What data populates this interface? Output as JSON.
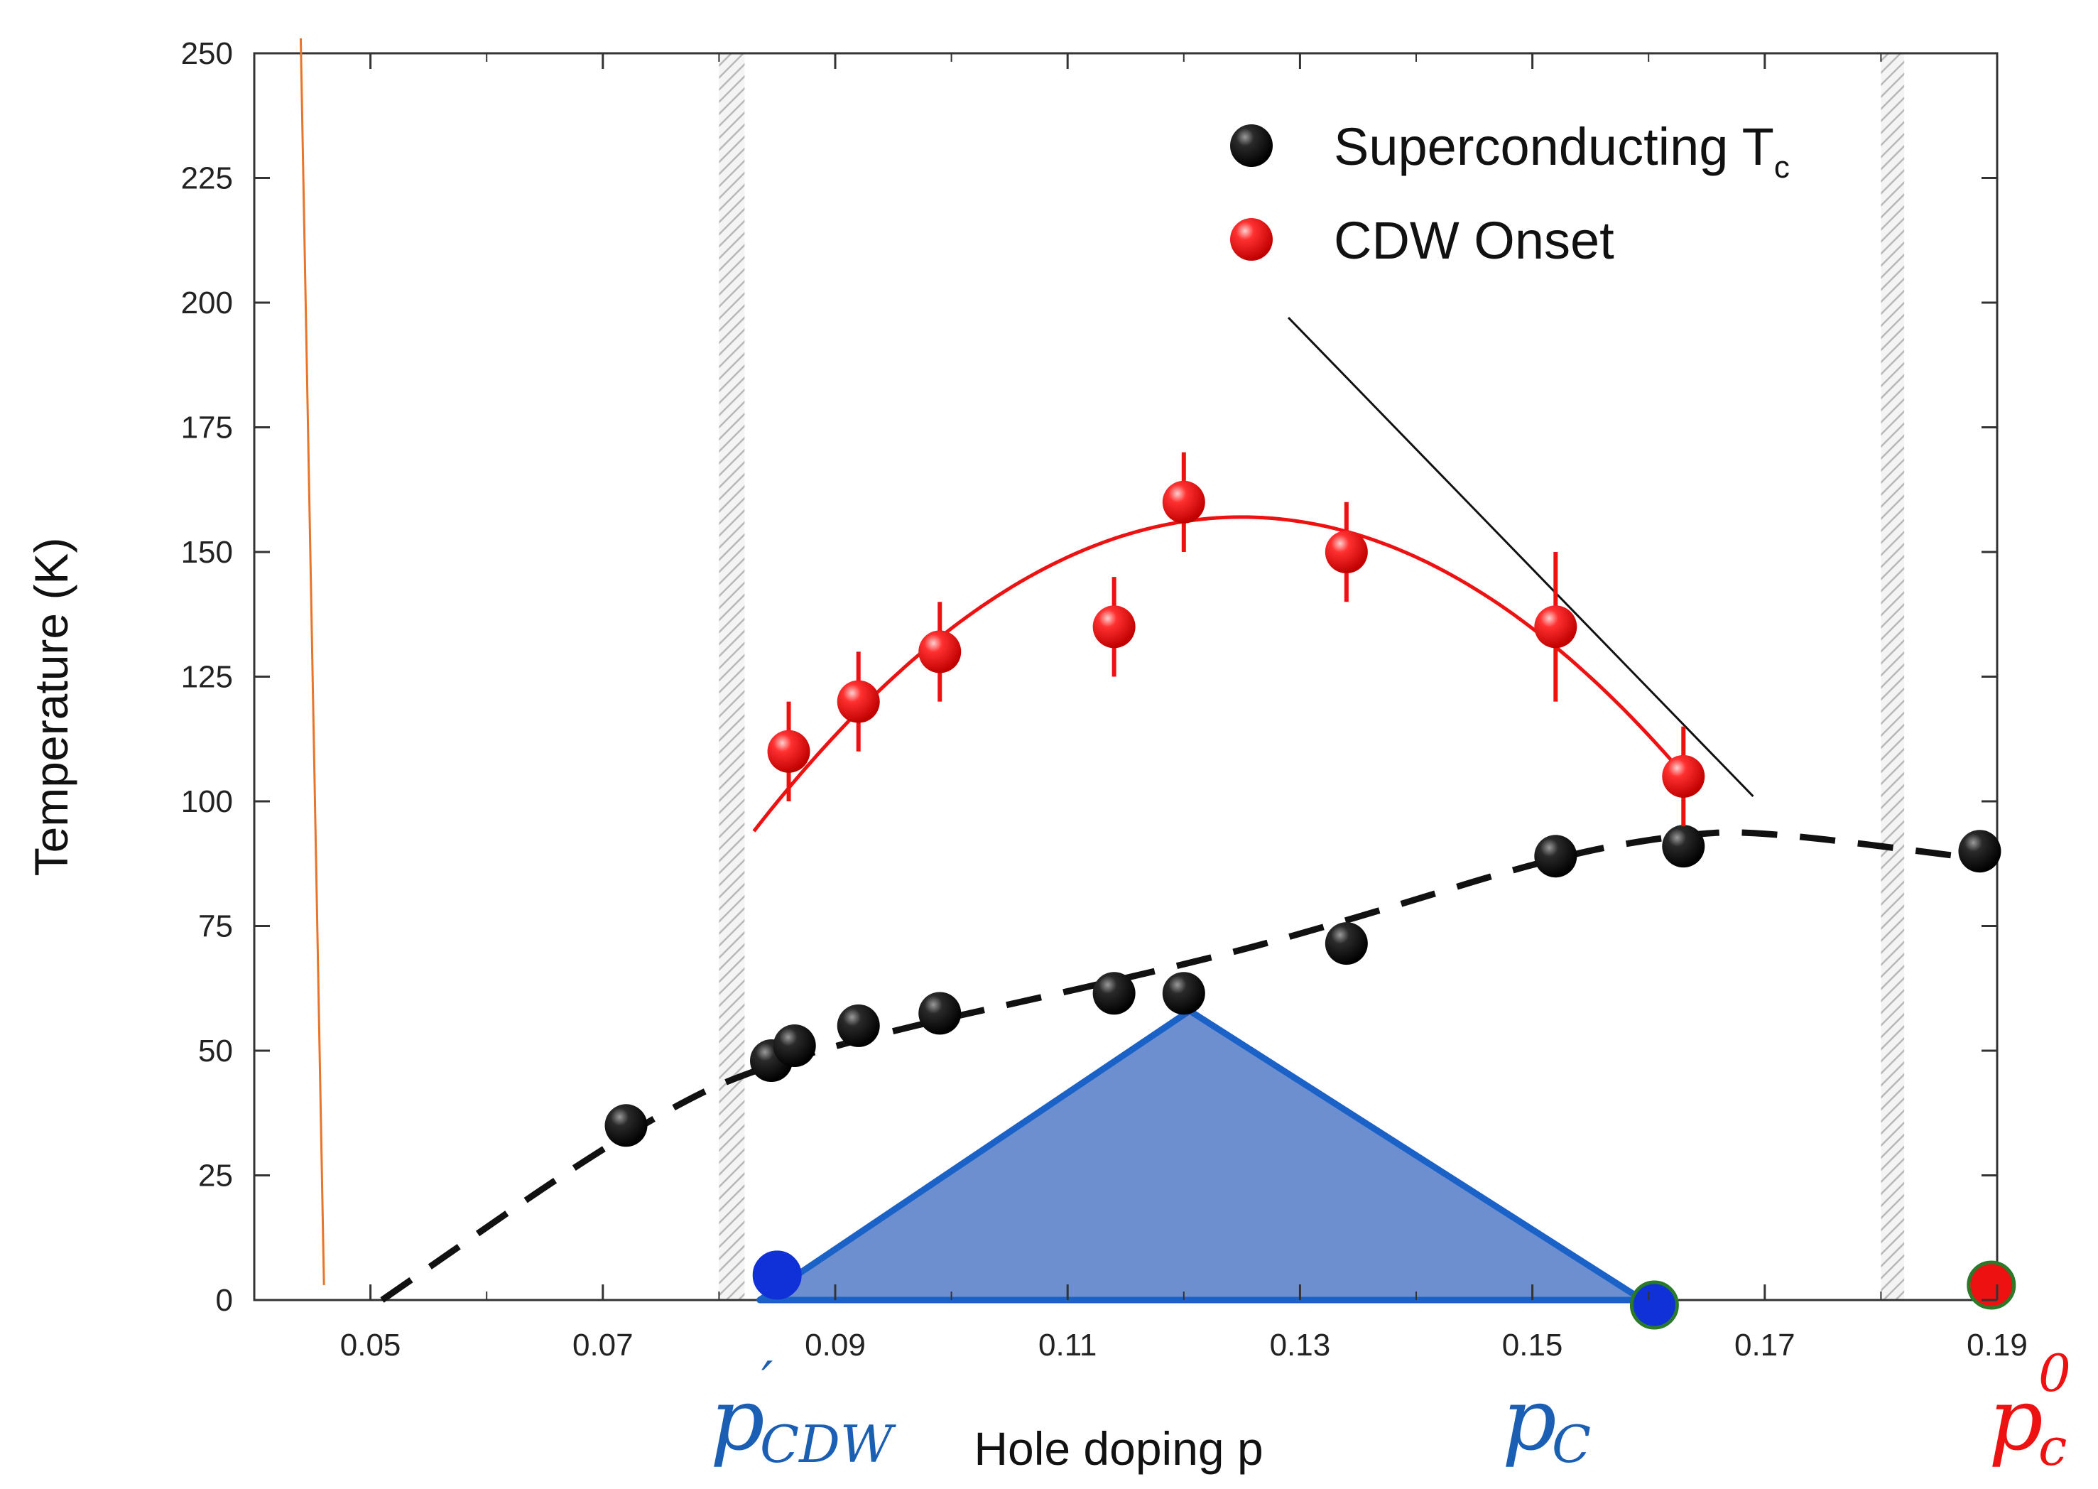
{
  "chart_data": {
    "type": "scatter",
    "title": "",
    "xlabel": "Hole doping p",
    "ylabel": "Temperature (K)",
    "xlim": [
      0.04,
      0.19
    ],
    "ylim": [
      0,
      250
    ],
    "xticks": [
      0.05,
      0.07,
      0.09,
      0.11,
      0.13,
      0.15,
      0.17,
      0.19
    ],
    "xtick_labels": [
      "0.05",
      "0.07",
      "0.09",
      "0.11",
      "0.13",
      "0.15",
      "0.17",
      "0.19"
    ],
    "yticks": [
      0,
      25,
      50,
      75,
      100,
      125,
      150,
      175,
      200,
      225,
      250
    ],
    "ytick_labels": [
      "0",
      "25",
      "50",
      "75",
      "100",
      "125",
      "150",
      "175",
      "200",
      "225",
      "250"
    ],
    "legend_position": "top-right",
    "series": [
      {
        "name": "Superconducting T",
        "name_subscript": "c",
        "color": "#111111",
        "x": [
          0.072,
          0.0845,
          0.0865,
          0.092,
          0.099,
          0.114,
          0.12,
          0.134,
          0.152,
          0.163,
          0.1885
        ],
        "y": [
          35,
          48,
          51,
          55,
          57.5,
          61.5,
          61.5,
          71.5,
          89,
          91,
          90
        ]
      },
      {
        "name": "CDW Onset",
        "color": "#ee1111",
        "x": [
          0.086,
          0.092,
          0.099,
          0.114,
          0.12,
          0.134,
          0.152,
          0.163
        ],
        "y": [
          110,
          120,
          130,
          135,
          160,
          150,
          135,
          105
        ],
        "yerr": [
          10,
          10,
          10,
          10,
          10,
          10,
          15,
          10
        ]
      }
    ],
    "fits": {
      "cdw_fit": {
        "color": "#ee1111",
        "x_range": [
          0.083,
          0.164
        ],
        "vertex_x": 0.125,
        "vertex_y": 157,
        "y_at_start": 94
      },
      "tc_dome_dashed": {
        "color": "#111111",
        "points": [
          [
            0.051,
            0
          ],
          [
            0.072,
            34
          ],
          [
            0.085,
            49
          ],
          [
            0.12,
            67
          ],
          [
            0.134,
            76
          ],
          [
            0.152,
            89
          ],
          [
            0.163,
            93.5
          ],
          [
            0.17,
            94
          ],
          [
            0.19,
            88
          ]
        ]
      },
      "tangent_line": {
        "color": "#111111",
        "points": [
          [
            0.129,
            197
          ],
          [
            0.169,
            101
          ]
        ]
      }
    },
    "shaded_bands": [
      {
        "x_range": [
          0.08,
          0.0822
        ],
        "style": "hatched-gray"
      },
      {
        "x_range": [
          0.18,
          0.182
        ],
        "style": "hatched-gray"
      }
    ],
    "triangle": {
      "color": "#1b62c8",
      "fill": "#6d8fcf",
      "vertices": [
        [
          0.0835,
          0
        ],
        [
          0.1205,
          58
        ],
        [
          0.1595,
          0
        ]
      ]
    },
    "orange_line": {
      "color": "#e8752a",
      "points": [
        [
          0.044,
          253
        ],
        [
          0.046,
          3
        ]
      ]
    },
    "markers": [
      {
        "name": "p_CDW_prime",
        "x": 0.085,
        "y": 5,
        "color": "#1030d8",
        "edge": "#1030d8"
      },
      {
        "name": "p_C",
        "x": 0.1605,
        "y": -1,
        "color": "#1030d8",
        "edge": "#2a7a2a"
      },
      {
        "name": "p_c_0",
        "x": 0.1895,
        "y": 3,
        "color": "#ee1111",
        "edge": "#2a7a2a"
      }
    ],
    "marker_labels": [
      {
        "text": "p",
        "sup": "′",
        "sub": "CDW",
        "color": "#1a5fb4"
      },
      {
        "text": "p",
        "sup": "",
        "sub": "C",
        "color": "#1a5fb4"
      },
      {
        "text": "p",
        "sup": "0",
        "sub": "c",
        "color": "#ee1111"
      }
    ]
  }
}
